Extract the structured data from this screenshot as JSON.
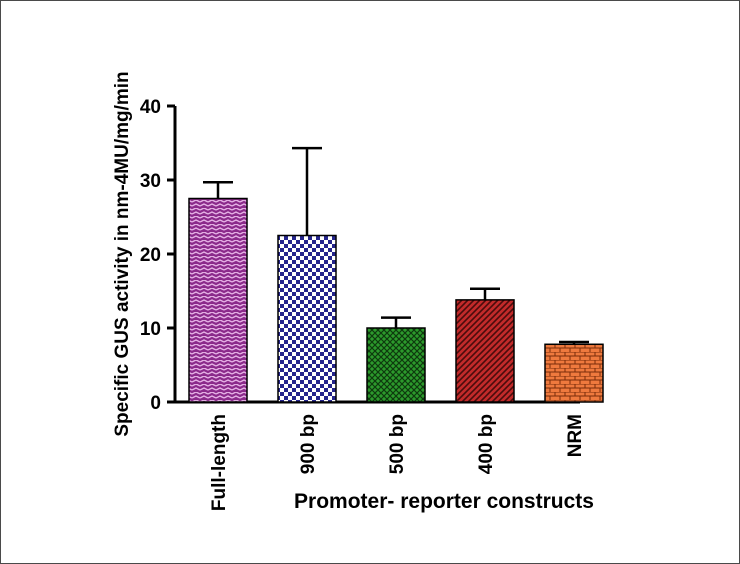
{
  "chart_data": {
    "type": "bar",
    "categories": [
      "Full-length",
      "900 bp",
      "500 bp",
      "400 bp",
      "NRM"
    ],
    "values": [
      27.5,
      22.5,
      10.0,
      13.8,
      7.8
    ],
    "errors": [
      2.2,
      11.8,
      1.4,
      1.5,
      0.3
    ],
    "ylabel": "Specific GUS activity in nm-4MU/mg/min",
    "xlabel": "Promoter- reporter constructs",
    "ylim": [
      0,
      40
    ],
    "yticks": [
      0,
      10,
      20,
      30,
      40
    ],
    "grid": false,
    "colors": [
      "#8b2a8b",
      "#24248c",
      "#2c9a2c",
      "#a81f1f",
      "#e0622b"
    ],
    "patterns": [
      "weave",
      "checker",
      "crosshatch",
      "diagonal",
      "brick"
    ]
  }
}
